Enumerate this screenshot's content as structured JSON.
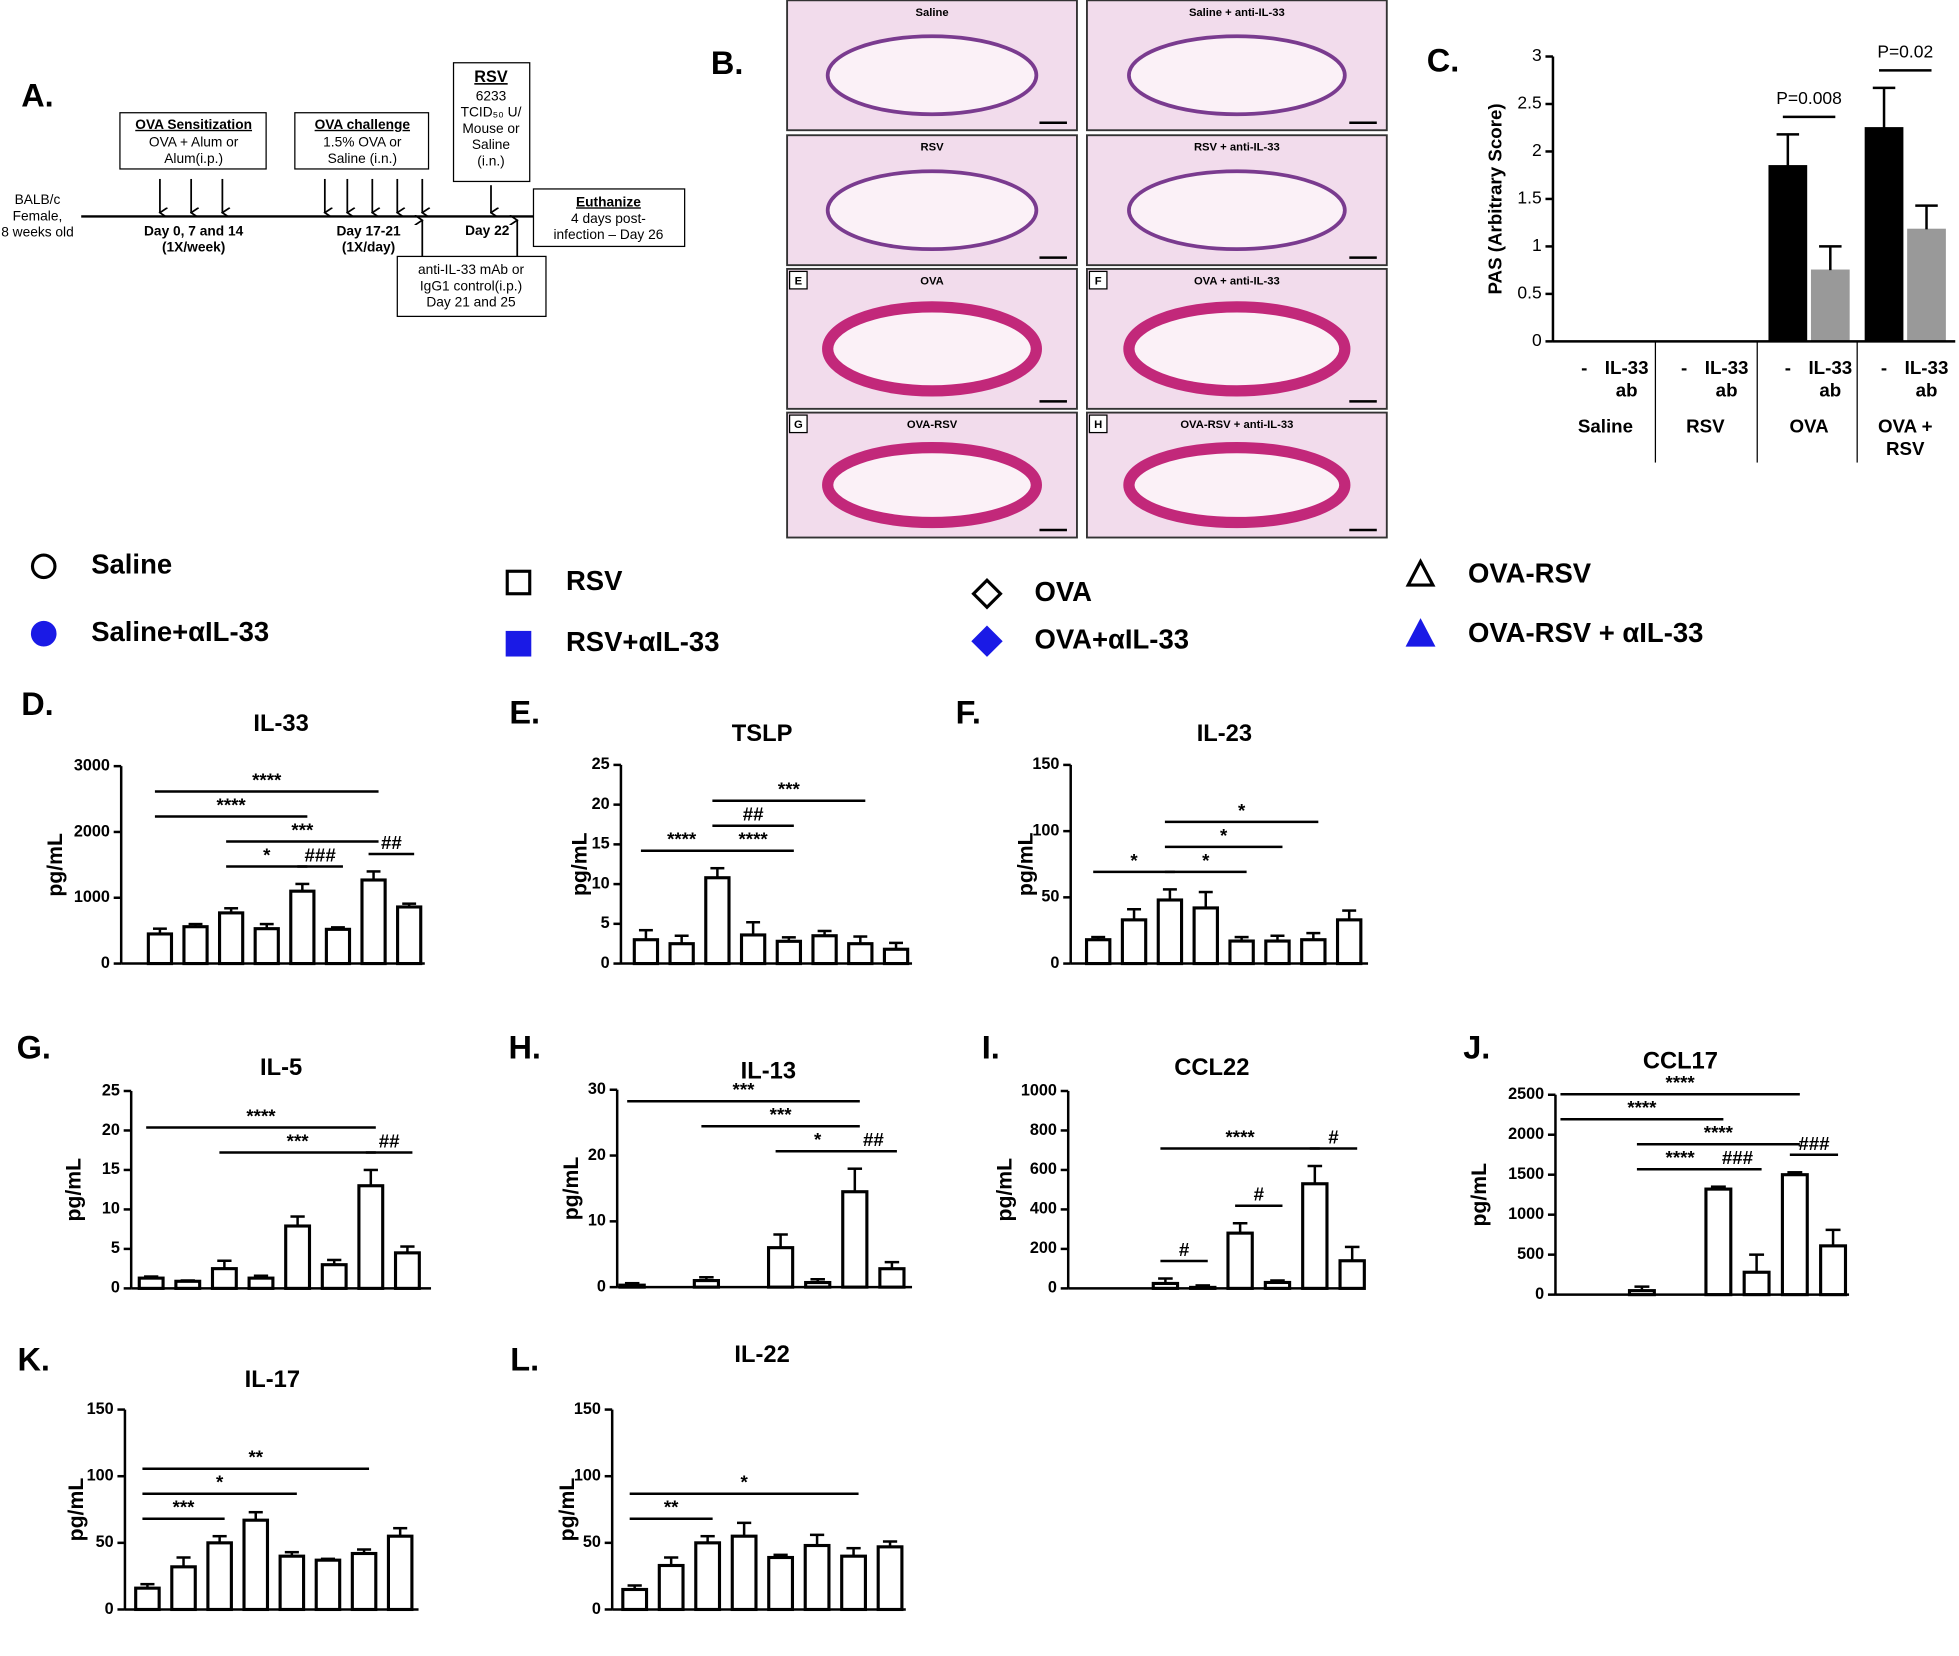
{
  "diagram": {
    "label": "A.",
    "subject": "BALB/c\nFemale,\n8 weeks old",
    "sensitization": {
      "title": "OVA Sensitization",
      "body": "OVA + Alum or\nAlum(i.p.)",
      "day": "Day 0, 7 and 14\n(1X/week)"
    },
    "challenge": {
      "title": "OVA challenge",
      "body": "1.5% OVA or\nSaline (i.n.)",
      "day": "Day 17-21\n(1X/day)"
    },
    "rsv": {
      "title": "RSV",
      "body": "6233\nTCID₅₀ U/\nMouse or\nSaline\n(i.n.)",
      "day": "Day 22"
    },
    "antibody": "anti-IL-33 mAb or\nIgG1 control(i.p.)\nDay 21 and 25",
    "euthanize": {
      "title": "Euthanize",
      "body": "4 days post-\ninfection – Day 26"
    }
  },
  "histology": {
    "label": "B.",
    "images": [
      {
        "label": "Saline"
      },
      {
        "label": "Saline + anti-IL-33"
      },
      {
        "label": "RSV"
      },
      {
        "label": "RSV + anti-IL-33"
      },
      {
        "label": "OVA",
        "letter": "E"
      },
      {
        "label": "OVA + anti-IL-33",
        "letter": "F"
      },
      {
        "label": "OVA-RSV",
        "letter": "G"
      },
      {
        "label": "OVA-RSV + anti-IL-33",
        "letter": "H"
      }
    ]
  },
  "legend": [
    {
      "name": "Saline",
      "marker": "circle",
      "color": "#000000",
      "filled": false
    },
    {
      "name": "Saline+αIL-33",
      "marker": "circle",
      "color": "#1a1ae6",
      "filled": true
    },
    {
      "name": "RSV",
      "marker": "square",
      "color": "#000000",
      "filled": false
    },
    {
      "name": "RSV+αIL-33",
      "marker": "square",
      "color": "#1a1ae6",
      "filled": true
    },
    {
      "name": "OVA",
      "marker": "diamond",
      "color": "#000000",
      "filled": false
    },
    {
      "name": "OVA+αIL-33",
      "marker": "diamond",
      "color": "#1a1ae6",
      "filled": true
    },
    {
      "name": "OVA-RSV",
      "marker": "triangle",
      "color": "#000000",
      "filled": false
    },
    {
      "name": "OVA-RSV + αIL-33",
      "marker": "triangle",
      "color": "#1a1ae6",
      "filled": true
    }
  ],
  "chart_data": [
    {
      "type": "bar",
      "label": "C.",
      "ylabel": "PAS (Arbitrary Score)",
      "categories": [
        "-",
        "IL-33\nab",
        "-",
        "IL-33\nab",
        "-",
        "IL-33\nab",
        "-",
        "IL-33\nab"
      ],
      "groups": [
        "Saline",
        "RSV",
        "OVA",
        "OVA +\nRSV"
      ],
      "values": [
        0,
        0,
        0,
        0,
        1.85,
        0.75,
        2.25,
        1.18
      ],
      "errors": [
        0,
        0,
        0,
        0,
        0.33,
        0.25,
        0.42,
        0.25
      ],
      "colors": [
        "#000000",
        "#999999",
        "#000000",
        "#999999",
        "#000000",
        "#999999",
        "#000000",
        "#999999"
      ],
      "ylim": [
        0,
        3
      ],
      "yticks": [
        0,
        0.5,
        1,
        1.5,
        2,
        2.5,
        3
      ],
      "annotations": [
        {
          "text": "P=0.008",
          "from": 4,
          "to": 5
        },
        {
          "text": "P=0.02",
          "from": 6,
          "to": 7
        }
      ]
    },
    {
      "type": "bar",
      "label": "D.",
      "title": "IL-33",
      "ylabel": "pg/mL",
      "values": [
        450,
        560,
        770,
        530,
        1100,
        520,
        1270,
        860
      ],
      "errors": [
        80,
        40,
        70,
        70,
        110,
        30,
        130,
        50
      ],
      "ylim": [
        0,
        3000
      ],
      "yticks": [
        0,
        1000,
        2000,
        3000
      ],
      "annotations": [
        {
          "text": "*",
          "from": 2,
          "to": 4
        },
        {
          "text": "###",
          "from": 4,
          "to": 5
        },
        {
          "text": "##",
          "from": 6,
          "to": 7
        },
        {
          "text": "***",
          "from": 2,
          "to": 6
        },
        {
          "text": "****",
          "from": 0,
          "to": 4
        },
        {
          "text": "****",
          "from": 0,
          "to": 6
        }
      ]
    },
    {
      "type": "bar",
      "label": "E.",
      "title": "TSLP",
      "ylabel": "pg/mL",
      "values": [
        3,
        2.5,
        10.8,
        3.6,
        2.8,
        3.5,
        2.5,
        1.8
      ],
      "errors": [
        1.2,
        1,
        1.2,
        1.6,
        0.5,
        0.6,
        0.9,
        0.8
      ],
      "ylim": [
        0,
        25
      ],
      "yticks": [
        0,
        5,
        10,
        15,
        20,
        25
      ],
      "annotations": [
        {
          "text": "****",
          "from": 2,
          "to": 4
        },
        {
          "text": "****",
          "from": 0,
          "to": 2
        },
        {
          "text": "##",
          "from": 2,
          "to": 4
        },
        {
          "text": "***",
          "from": 2,
          "to": 6
        }
      ]
    },
    {
      "type": "bar",
      "label": "F.",
      "title": "IL-23",
      "ylabel": "pg/mL",
      "values": [
        18,
        33,
        48,
        42,
        17,
        17,
        18,
        33
      ],
      "errors": [
        2,
        8,
        8,
        12,
        3,
        4,
        5,
        7
      ],
      "ylim": [
        0,
        150
      ],
      "yticks": [
        0,
        50,
        100,
        150
      ],
      "annotations": [
        {
          "text": "*",
          "from": 0,
          "to": 2
        },
        {
          "text": "*",
          "from": 2,
          "to": 4
        },
        {
          "text": "*",
          "from": 2,
          "to": 5
        },
        {
          "text": "*",
          "from": 2,
          "to": 6
        }
      ]
    },
    {
      "type": "bar",
      "label": "G.",
      "title": "IL-5",
      "ylabel": "pg/mL",
      "values": [
        1.3,
        0.9,
        2.5,
        1.3,
        7.9,
        3,
        13,
        4.5
      ],
      "errors": [
        0.2,
        0.1,
        1,
        0.3,
        1.2,
        0.6,
        2,
        0.8
      ],
      "ylim": [
        0,
        25
      ],
      "yticks": [
        0,
        5,
        10,
        15,
        20,
        25
      ],
      "annotations": [
        {
          "text": "##",
          "from": 6,
          "to": 7
        },
        {
          "text": "***",
          "from": 2,
          "to": 6
        },
        {
          "text": "****",
          "from": 0,
          "to": 6
        }
      ]
    },
    {
      "type": "bar",
      "label": "H.",
      "title": "IL-13",
      "ylabel": "pg/mL",
      "values": [
        0.3,
        0,
        1,
        0,
        6,
        0.7,
        14.5,
        2.8
      ],
      "errors": [
        0.3,
        0,
        0.5,
        0,
        2,
        0.5,
        3.5,
        1
      ],
      "ylim": [
        0,
        30
      ],
      "yticks": [
        0,
        10,
        20,
        30
      ],
      "annotations": [
        {
          "text": "##",
          "from": 6,
          "to": 7
        },
        {
          "text": "*",
          "from": 4,
          "to": 6
        },
        {
          "text": "***",
          "from": 2,
          "to": 6
        },
        {
          "text": "***",
          "from": 0,
          "to": 6
        }
      ]
    },
    {
      "type": "bar",
      "label": "I.",
      "title": "CCL22",
      "ylabel": "pg/mL",
      "values": [
        0,
        0,
        25,
        5,
        280,
        30,
        530,
        140
      ],
      "errors": [
        0,
        0,
        25,
        10,
        50,
        10,
        90,
        70
      ],
      "ylim": [
        0,
        1000
      ],
      "yticks": [
        0,
        200,
        400,
        600,
        800,
        1000
      ],
      "annotations": [
        {
          "text": "#",
          "from": 2,
          "to": 3
        },
        {
          "text": "#",
          "from": 4,
          "to": 5
        },
        {
          "text": "#",
          "from": 6,
          "to": 7
        },
        {
          "text": "****",
          "from": 2,
          "to": 6
        }
      ]
    },
    {
      "type": "bar",
      "label": "J.",
      "title": "CCL17",
      "ylabel": "pg/mL",
      "values": [
        0,
        0,
        50,
        0,
        1320,
        280,
        1500,
        610
      ],
      "errors": [
        0,
        0,
        50,
        0,
        30,
        220,
        30,
        200
      ],
      "ylim": [
        0,
        2500
      ],
      "yticks": [
        0,
        500,
        1000,
        1500,
        2000,
        2500
      ],
      "annotations": [
        {
          "text": "###",
          "from": 4,
          "to": 5
        },
        {
          "text": "###",
          "from": 6,
          "to": 7
        },
        {
          "text": "****",
          "from": 2,
          "to": 4
        },
        {
          "text": "****",
          "from": 2,
          "to": 6
        },
        {
          "text": "****",
          "from": 0,
          "to": 4
        },
        {
          "text": "****",
          "from": 0,
          "to": 6
        }
      ]
    },
    {
      "type": "bar",
      "label": "K.",
      "title": "IL-17",
      "ylabel": "pg/mL",
      "values": [
        16,
        32,
        50,
        67,
        40,
        37,
        42,
        55
      ],
      "errors": [
        3,
        7,
        5,
        6,
        3,
        1,
        3,
        6
      ],
      "ylim": [
        0,
        150
      ],
      "yticks": [
        0,
        50,
        100,
        150
      ],
      "annotations": [
        {
          "text": "***",
          "from": 0,
          "to": 2
        },
        {
          "text": "*",
          "from": 0,
          "to": 4
        },
        {
          "text": "**",
          "from": 0,
          "to": 6
        }
      ]
    },
    {
      "type": "bar",
      "label": "L.",
      "title": "IL-22",
      "ylabel": "pg/mL",
      "values": [
        15,
        33,
        50,
        55,
        39,
        48,
        40,
        47
      ],
      "errors": [
        3,
        6,
        5,
        10,
        2,
        8,
        6,
        4
      ],
      "ylim": [
        0,
        150
      ],
      "yticks": [
        0,
        50,
        100,
        150
      ],
      "annotations": [
        {
          "text": "**",
          "from": 0,
          "to": 2
        },
        {
          "text": "*",
          "from": 0,
          "to": 6
        }
      ]
    }
  ]
}
